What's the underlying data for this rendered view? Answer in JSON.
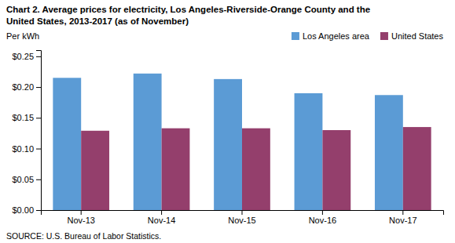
{
  "chart_data": {
    "type": "bar",
    "title": "Chart 2. Average prices for electricity, Los Angeles-Riverside-Orange County and the",
    "subtitle": "United States, 2013-2017  (as of November)",
    "ylabel": "Per kWh",
    "annotations": [
      "SOURCE: U.S. Bureau of Labor Statistics."
    ],
    "categories": [
      "Nov-13",
      "Nov-14",
      "Nov-15",
      "Nov-16",
      "Nov-17"
    ],
    "series": [
      {
        "name": "Los Angeles area",
        "color": "#5B9BD5",
        "values": [
          0.215,
          0.222,
          0.213,
          0.19,
          0.187
        ]
      },
      {
        "name": "United States",
        "color": "#943F6C",
        "values": [
          0.129,
          0.133,
          0.133,
          0.13,
          0.135
        ]
      }
    ],
    "ylim": [
      0.0,
      0.26
    ],
    "yticks": [
      {
        "value": 0.0,
        "label": "$0.00"
      },
      {
        "value": 0.05,
        "label": "$0.05"
      },
      {
        "value": 0.1,
        "label": "$0.10"
      },
      {
        "value": 0.15,
        "label": "$0.15"
      },
      {
        "value": 0.2,
        "label": "$0.20"
      },
      {
        "value": 0.25,
        "label": "$0.25"
      }
    ],
    "grid": false,
    "legend": "top-right"
  }
}
